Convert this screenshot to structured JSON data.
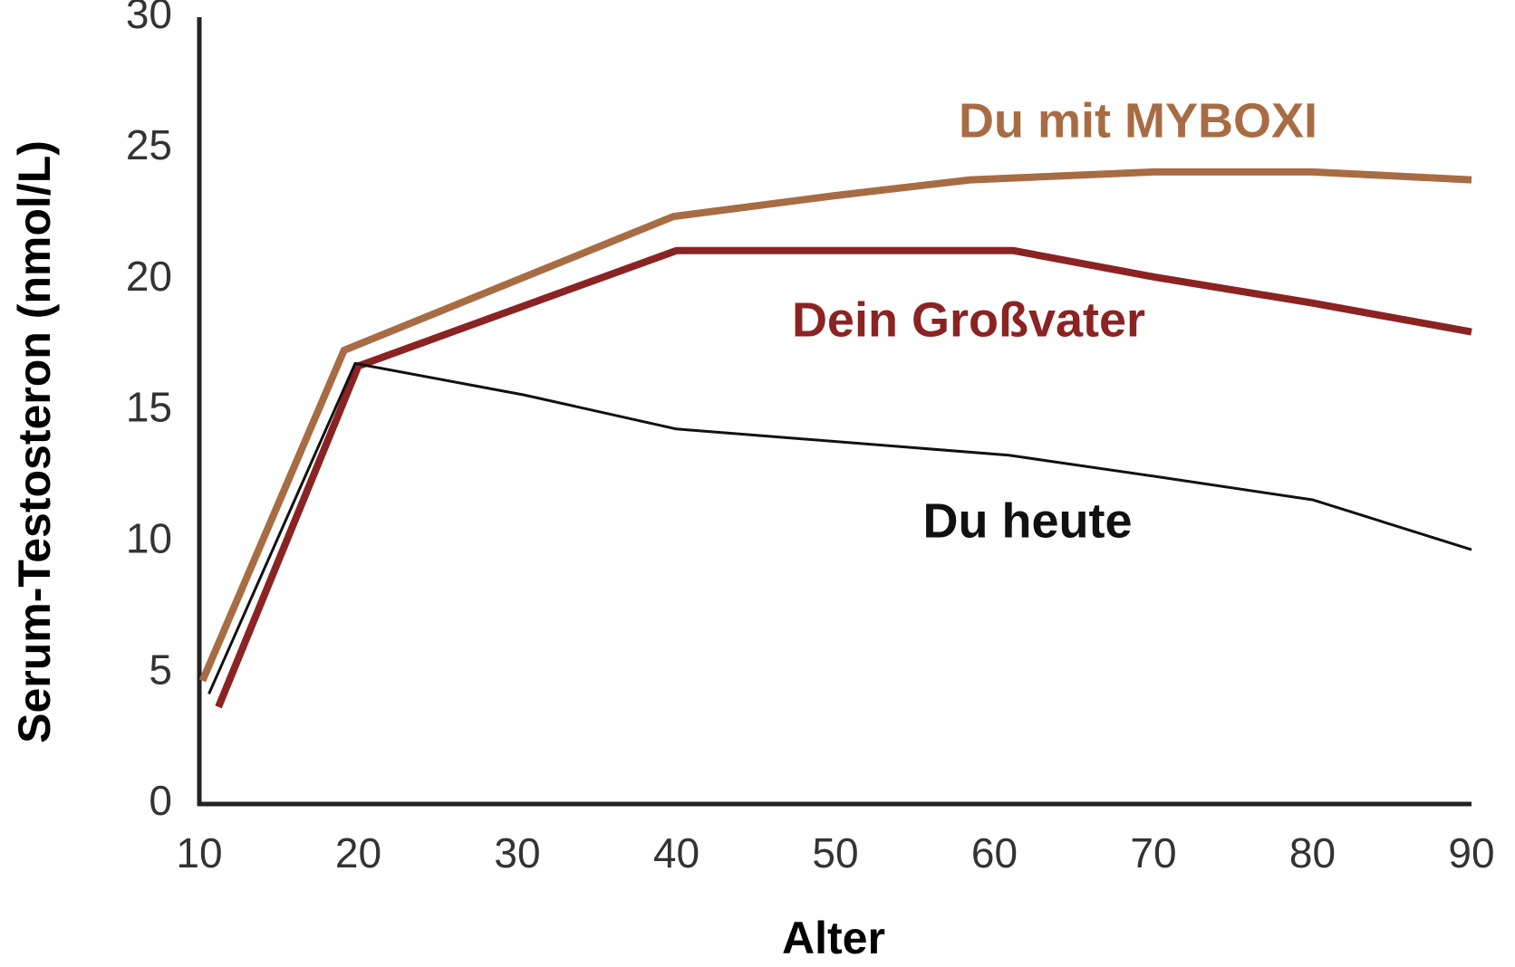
{
  "chart_data": {
    "type": "line",
    "x_label": "Alter",
    "y_label": "Serum-Testosteron (nmol/L)",
    "xlim": [
      10,
      90
    ],
    "ylim": [
      0,
      30
    ],
    "xticks": [
      10,
      20,
      30,
      40,
      50,
      60,
      70,
      80,
      90
    ],
    "yticks": [
      0,
      5,
      10,
      15,
      20,
      25,
      30
    ],
    "grid": false,
    "series": [
      {
        "name": "Du mit MYBOXI",
        "color": "#a86c44",
        "x": [
          10.2,
          19.1,
          39.8,
          50,
          58.5,
          70,
          80,
          90
        ],
        "values": [
          4.7,
          17.3,
          22.4,
          23.2,
          23.8,
          24.1,
          24.1,
          23.8
        ]
      },
      {
        "name": "Dein Großvater",
        "color": "#8b2323",
        "x": [
          11.2,
          20,
          40,
          61.2,
          70,
          80,
          90
        ],
        "values": [
          3.7,
          16.7,
          21.1,
          21.1,
          20.1,
          19.1,
          18
        ]
      },
      {
        "name": "Du heute",
        "color": "#111111",
        "x": [
          10.6,
          19.8,
          30.4,
          40,
          60.9,
          70,
          80,
          90
        ],
        "values": [
          4.2,
          16.8,
          15.6,
          14.3,
          13.3,
          12.5,
          11.6,
          9.7
        ]
      }
    ]
  }
}
